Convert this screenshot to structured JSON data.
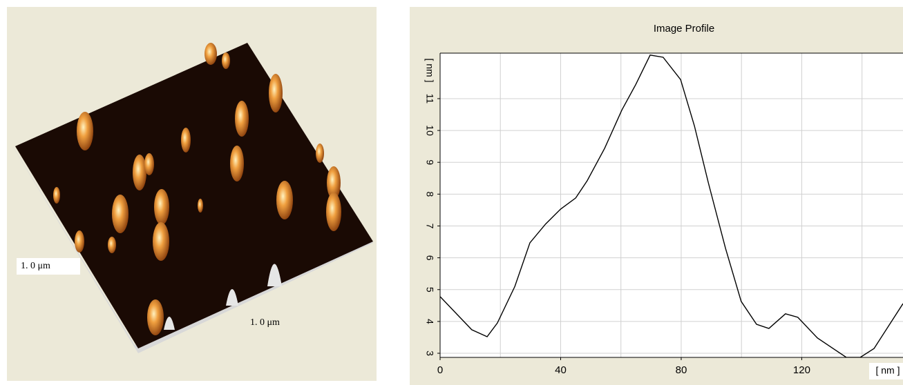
{
  "image_panel": {
    "labels": [
      "1. 0 μm",
      "1. 0 μm"
    ]
  },
  "chart_data": {
    "type": "line",
    "title": "Image Profile",
    "x_label": "[ nm ]",
    "y_label": "[ nm ]",
    "x": [
      0,
      10.5,
      15.6,
      19,
      24.8,
      29.8,
      35,
      40,
      45,
      48.8,
      54.6,
      60.3,
      64.9,
      69.7,
      74,
      79.8,
      84.4,
      89,
      94.7,
      99.9,
      105,
      109.1,
      114.6,
      118.7,
      125.2,
      134.8,
      139.4,
      144,
      153.6
    ],
    "values": [
      4.78,
      3.74,
      3.52,
      3.95,
      5.1,
      6.47,
      7.06,
      7.53,
      7.88,
      8.42,
      9.44,
      10.64,
      11.44,
      12.37,
      12.3,
      11.6,
      10.14,
      8.36,
      6.3,
      4.63,
      3.91,
      3.78,
      4.24,
      4.13,
      3.48,
      2.87,
      2.87,
      3.15,
      4.56
    ],
    "color": "#000000",
    "xlim": [
      0,
      153.6
    ],
    "ylim": [
      2.87,
      12.43
    ],
    "xticks": [
      0,
      40,
      80,
      120
    ],
    "xgrid": [
      20,
      60,
      100,
      140
    ],
    "yticks": [
      3,
      4,
      5,
      6,
      7,
      8,
      9,
      10,
      11
    ],
    "grid": true
  }
}
